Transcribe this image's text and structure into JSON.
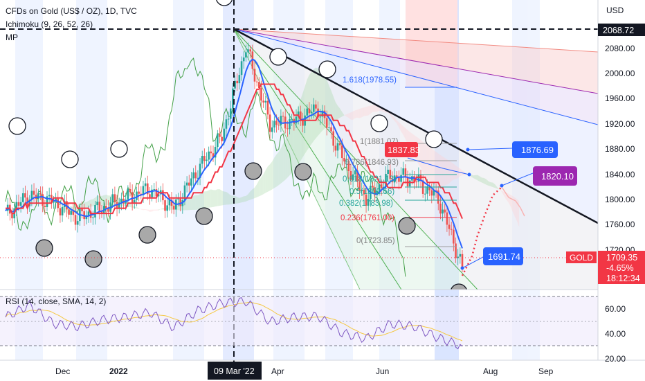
{
  "header": {
    "symbol_title": "CFDs on Gold (US$ / OZ), 1D, TVC",
    "indicator_ichimoku": "Ichimoku (9, 26, 52, 26)",
    "indicator_mp": "MP",
    "rsi_title": "RSI (14, close, SMA, 14, 2)"
  },
  "price_axis": {
    "currency": "USD",
    "high_marker": "2068.72",
    "ticks": [
      "2080.00",
      "2040.00",
      "2000.00",
      "1960.00",
      "1920.00",
      "1880.00",
      "1840.00",
      "1800.00",
      "1760.00",
      "1720.00"
    ],
    "symbol_badge": "GOLD",
    "last_price": "1709.35",
    "change_pct": "-4.65%",
    "countdown": "18:12:34"
  },
  "rsi_axis": {
    "ticks": [
      "60.00",
      "40.00",
      "20.00"
    ]
  },
  "time_axis": {
    "ticks": [
      "Dec",
      "2022",
      "Apr",
      "Jun",
      "Aug",
      "Sep"
    ],
    "crosshair_label": "09 Mar '22"
  },
  "fib_levels": [
    {
      "label": "1.618(1978.55)"
    },
    {
      "label": "1(1881.07)"
    },
    {
      "label": "0.786(1846.93)"
    },
    {
      "label": "0.618(1821.13)"
    },
    {
      "label": "0.5(1802.56)"
    },
    {
      "label": "0.382(1783.98)"
    },
    {
      "label": "0.236(1761.00)"
    },
    {
      "label": "0(1723.85)"
    }
  ],
  "callouts": [
    {
      "value": "1837.83",
      "color": "#f23645"
    },
    {
      "value": "1876.69",
      "color": "#2962ff"
    },
    {
      "value": "1820.10",
      "color": "#9c27b0"
    },
    {
      "value": "1691.74",
      "color": "#2962ff"
    }
  ],
  "colors": {
    "candle_up": "#26a69a",
    "candle_down": "#ef5350",
    "tenkan": "#2962ff",
    "kijun": "#f23645",
    "lagging": "#43a047",
    "rsi": "#7e57c2",
    "rsi_ma": "#f5c842",
    "trendline": "#131722"
  },
  "chart_data": {
    "type": "candlestick",
    "title": "CFDs on Gold (US$ / OZ), 1D, TVC",
    "x": [
      "2021-10-25",
      "2021-11-08",
      "2021-11-22",
      "2021-12-06",
      "2021-12-20",
      "2022-01-03",
      "2022-01-17",
      "2022-01-31",
      "2022-02-14",
      "2022-02-28",
      "2022-03-08",
      "2022-03-21",
      "2022-04-04",
      "2022-04-18",
      "2022-05-02",
      "2022-05-16",
      "2022-05-30",
      "2022-06-13",
      "2022-06-27",
      "2022-07-05"
    ],
    "series": [
      {
        "name": "close",
        "values": [
          1790,
          1820,
          1810,
          1785,
          1800,
          1815,
          1830,
          1800,
          1860,
          1910,
          2050,
          1930,
          1935,
          1955,
          1880,
          1815,
          1850,
          1845,
          1815,
          1709
        ]
      }
    ],
    "ylim": [
      1700,
      2090
    ],
    "rsi": {
      "values": [
        55,
        68,
        48,
        45,
        52,
        55,
        60,
        44,
        62,
        70,
        72,
        50,
        55,
        56,
        38,
        32,
        48,
        45,
        33,
        24
      ],
      "ylim": [
        15,
        80
      ],
      "levels": [
        70,
        50,
        30
      ]
    }
  }
}
